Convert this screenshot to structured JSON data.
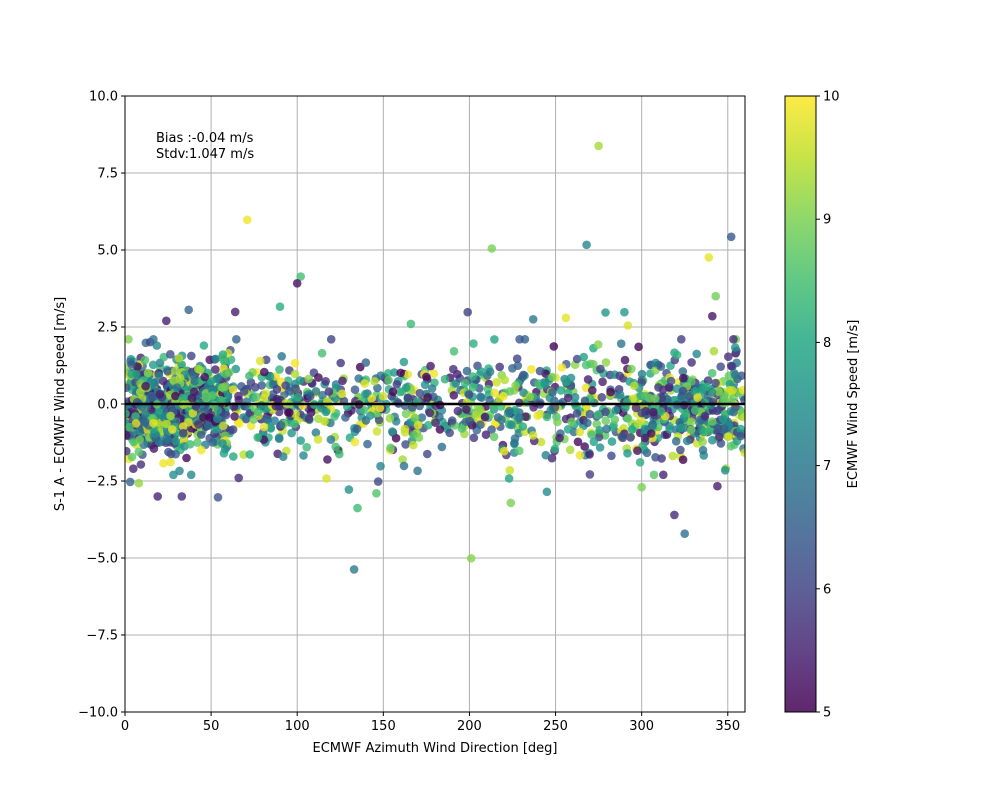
{
  "chart_data": {
    "type": "scatter",
    "xlabel": "ECMWF Azimuth Wind Direction [deg]",
    "ylabel": "S-1 A - ECMWF Wind speed [m/s]",
    "xlim": [
      0,
      360
    ],
    "ylim": [
      -10,
      10
    ],
    "xticks": [
      0,
      50,
      100,
      150,
      200,
      250,
      300,
      350
    ],
    "yticks": [
      -10.0,
      -7.5,
      -5.0,
      -2.5,
      0.0,
      2.5,
      5.0,
      7.5,
      10.0
    ],
    "xtick_labels": [
      "0",
      "50",
      "100",
      "150",
      "200",
      "250",
      "300",
      "350"
    ],
    "ytick_labels": [
      "−10.0",
      "−7.5",
      "−5.0",
      "−2.5",
      "0.0",
      "2.5",
      "5.0",
      "7.5",
      "10.0"
    ],
    "grid": true,
    "annotations": {
      "bias": "Bias :-0.04 m/s",
      "stdv": "Stdv:1.047 m/s"
    },
    "reference_line": {
      "y": 0.0,
      "color": "#000000"
    },
    "colorbar": {
      "label": "ECMWF Wind Speed [m/s]",
      "range": [
        5,
        10
      ],
      "ticks": [
        5,
        6,
        7,
        8,
        9,
        10
      ],
      "tick_labels": [
        "5",
        "6",
        "7",
        "8",
        "9",
        "10"
      ],
      "colormap": "viridis"
    },
    "point_generation": {
      "count": 1900,
      "seed": 20240517,
      "stdv": 1.047,
      "bias": -0.04,
      "c_range": [
        5,
        10
      ]
    },
    "points": [
      {
        "x": 275,
        "y": 8.38,
        "c": 9.3
      },
      {
        "x": 71,
        "y": 5.98,
        "c": 9.9
      },
      {
        "x": 213,
        "y": 5.05,
        "c": 9.0
      },
      {
        "x": 268,
        "y": 5.17,
        "c": 7.3
      },
      {
        "x": 352,
        "y": 5.43,
        "c": 6.4
      },
      {
        "x": 339,
        "y": 4.76,
        "c": 9.8
      },
      {
        "x": 102,
        "y": 4.14,
        "c": 8.5
      },
      {
        "x": 100,
        "y": 3.92,
        "c": 5.2
      },
      {
        "x": 343,
        "y": 3.5,
        "c": 8.9
      },
      {
        "x": 37,
        "y": 3.06,
        "c": 6.6
      },
      {
        "x": 90,
        "y": 3.16,
        "c": 8.1
      },
      {
        "x": 64,
        "y": 2.99,
        "c": 5.4
      },
      {
        "x": 199,
        "y": 2.98,
        "c": 5.9
      },
      {
        "x": 279,
        "y": 2.97,
        "c": 7.6
      },
      {
        "x": 290,
        "y": 2.98,
        "c": 7.7
      },
      {
        "x": 256,
        "y": 2.8,
        "c": 9.8
      },
      {
        "x": 341,
        "y": 2.85,
        "c": 5.3
      },
      {
        "x": 24,
        "y": 2.7,
        "c": 5.4
      },
      {
        "x": 237,
        "y": 2.75,
        "c": 7.0
      },
      {
        "x": 166,
        "y": 2.6,
        "c": 8.4
      },
      {
        "x": 292,
        "y": 2.55,
        "c": 9.7
      },
      {
        "x": 133,
        "y": -5.37,
        "c": 7.0
      },
      {
        "x": 201,
        "y": -5.01,
        "c": 9.1
      },
      {
        "x": 325,
        "y": -4.21,
        "c": 6.8
      },
      {
        "x": 319,
        "y": -3.6,
        "c": 5.6
      },
      {
        "x": 135,
        "y": -3.38,
        "c": 8.4
      },
      {
        "x": 224,
        "y": -3.21,
        "c": 9.0
      },
      {
        "x": 19,
        "y": -3.0,
        "c": 5.5
      },
      {
        "x": 33,
        "y": -3.0,
        "c": 5.6
      },
      {
        "x": 54,
        "y": -3.03,
        "c": 6.3
      },
      {
        "x": 146,
        "y": -2.9,
        "c": 8.6
      },
      {
        "x": 245,
        "y": -2.85,
        "c": 7.4
      },
      {
        "x": 130,
        "y": -2.78,
        "c": 7.5
      },
      {
        "x": 300,
        "y": -2.7,
        "c": 9.0
      },
      {
        "x": 344,
        "y": -2.67,
        "c": 5.4
      },
      {
        "x": 8,
        "y": -2.57,
        "c": 9.2
      },
      {
        "x": 3,
        "y": -2.53,
        "c": 6.6
      },
      {
        "x": 147,
        "y": -2.52,
        "c": 6.1
      },
      {
        "x": 66,
        "y": -2.4,
        "c": 5.6
      },
      {
        "x": 117,
        "y": -2.42,
        "c": 9.7
      },
      {
        "x": 223,
        "y": -2.42,
        "c": 7.9
      }
    ]
  }
}
